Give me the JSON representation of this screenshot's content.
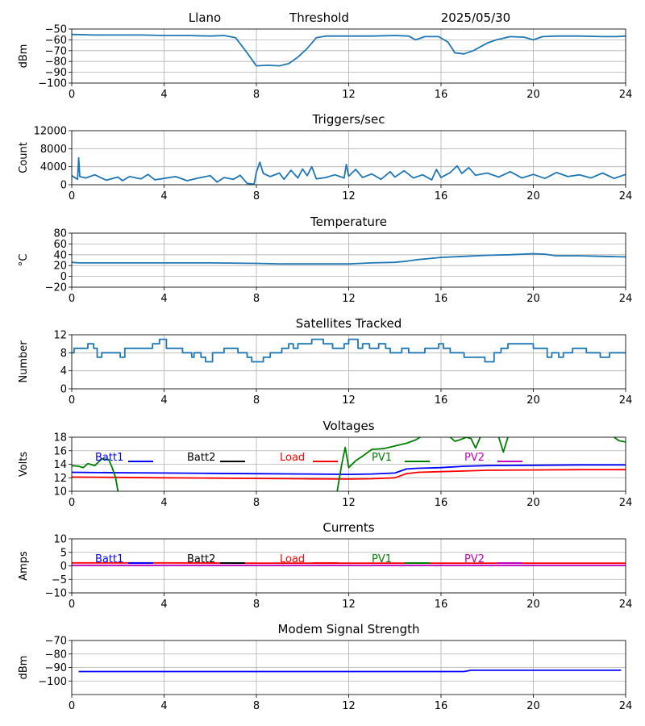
{
  "colors": {
    "series_default": "#1f77b4",
    "batt1": "#0000ff",
    "batt2": "#000000",
    "load": "#ff0000",
    "pv1": "#008000",
    "pv2": "#c000c0",
    "grid": "#b0b0b0"
  },
  "x_ticks": [
    "0",
    "4",
    "8",
    "12",
    "16",
    "20",
    "24"
  ],
  "chart_data": [
    {
      "type": "line",
      "title_parts": [
        "Llano",
        "Threshold",
        "2025/05/30"
      ],
      "xlabel": "",
      "ylabel": "dBm",
      "xlim": [
        0,
        24
      ],
      "ylim": [
        -100,
        -50
      ],
      "y_ticks": [
        "−50",
        "−60",
        "−70",
        "−80",
        "−90",
        "−100"
      ],
      "grid": true,
      "series": [
        {
          "color": "#1f77b4",
          "x": [
            0,
            1,
            2,
            3,
            4,
            5,
            6,
            6.6,
            7.1,
            7.6,
            8,
            8.5,
            9,
            9.4,
            9.8,
            10.2,
            10.6,
            11,
            12,
            13,
            14,
            14.6,
            14.9,
            15.3,
            15.6,
            15.9,
            16.3,
            16.6,
            17,
            17.4,
            18,
            18.4,
            19,
            19.6,
            20,
            20.4,
            21,
            22,
            23,
            23.6,
            24
          ],
          "y": [
            -55,
            -55.5,
            -55.5,
            -55.5,
            -56,
            -56,
            -56.5,
            -56,
            -58,
            -72,
            -84,
            -83.5,
            -84,
            -82,
            -76,
            -68,
            -58,
            -56.5,
            -56.5,
            -56.5,
            -56,
            -56.5,
            -60,
            -57,
            -57,
            -57,
            -62,
            -72,
            -73,
            -70,
            -63,
            -60,
            -57,
            -57.5,
            -60,
            -57,
            -56.5,
            -56.5,
            -57,
            -57,
            -56.5
          ]
        }
      ]
    },
    {
      "type": "line",
      "title": "Triggers/sec",
      "xlabel": "",
      "ylabel": "Count",
      "xlim": [
        0,
        24
      ],
      "ylim": [
        0,
        12000
      ],
      "y_ticks": [
        "0",
        "4000",
        "8000",
        "12000"
      ],
      "grid": true,
      "series": [
        {
          "color": "#1f77b4",
          "x": [
            0,
            0.25,
            0.3,
            0.35,
            0.6,
            1,
            1.5,
            2,
            2.2,
            2.5,
            3,
            3.3,
            3.6,
            4,
            4.5,
            5,
            5.5,
            6,
            6.3,
            6.6,
            7,
            7.3,
            7.6,
            7.9,
            8,
            8.15,
            8.3,
            8.6,
            9,
            9.2,
            9.5,
            9.8,
            10,
            10.2,
            10.4,
            10.6,
            11,
            11.4,
            11.8,
            11.9,
            12,
            12.3,
            12.6,
            13,
            13.4,
            13.8,
            14,
            14.4,
            14.8,
            15.2,
            15.6,
            15.8,
            16,
            16.4,
            16.7,
            16.9,
            17.2,
            17.5,
            18,
            18.5,
            19,
            19.5,
            20,
            20.5,
            21,
            21.5,
            22,
            22.5,
            23,
            23.5,
            24
          ],
          "y": [
            2000,
            1200,
            6000,
            1800,
            1500,
            2200,
            1000,
            1700,
            900,
            1800,
            1300,
            2300,
            1100,
            1400,
            1800,
            900,
            1500,
            2000,
            600,
            1600,
            1200,
            2100,
            300,
            100,
            2800,
            5000,
            2500,
            1800,
            2600,
            1200,
            3200,
            1500,
            3500,
            2000,
            4000,
            1300,
            1600,
            2200,
            1500,
            4500,
            1900,
            3400,
            1600,
            2400,
            1200,
            2900,
            1700,
            3100,
            1500,
            2200,
            1100,
            3400,
            1600,
            2700,
            4200,
            2500,
            3800,
            2100,
            2600,
            1700,
            2900,
            1500,
            2300,
            1400,
            2700,
            1800,
            2200,
            1500,
            2600,
            1400,
            2300
          ]
        }
      ]
    },
    {
      "type": "line",
      "title": "Temperature",
      "xlabel": "",
      "ylabel": "°C",
      "xlim": [
        0,
        24
      ],
      "ylim": [
        -20,
        80
      ],
      "y_ticks": [
        "80",
        "60",
        "40",
        "20",
        "0",
        "−20"
      ],
      "grid": true,
      "series": [
        {
          "color": "#1f77b4",
          "x": [
            0,
            0.3,
            2,
            4,
            6,
            8,
            9,
            10,
            11,
            12,
            12.5,
            13,
            14,
            14.5,
            15,
            15.5,
            16,
            17,
            18,
            19,
            20,
            20.5,
            21,
            22,
            23,
            24
          ],
          "y": [
            26,
            25,
            25,
            25,
            25,
            24,
            23,
            23,
            23,
            23,
            24,
            25,
            26,
            28,
            31,
            33,
            35,
            37,
            39,
            40,
            42,
            41,
            38,
            38,
            37,
            36
          ]
        }
      ]
    },
    {
      "type": "line",
      "title": "Satellites Tracked",
      "xlabel": "",
      "ylabel": "Number",
      "xlim": [
        0,
        24
      ],
      "ylim": [
        0,
        12
      ],
      "y_ticks": [
        "0",
        "4",
        "8",
        "12"
      ],
      "grid": true,
      "series": [
        {
          "color": "#1f77b4",
          "step": true,
          "x": [
            0,
            0.1,
            0.7,
            0.95,
            1.1,
            1.3,
            2.1,
            2.3,
            3.4,
            3.5,
            3.8,
            4.1,
            4.4,
            4.8,
            5.2,
            5.3,
            5.6,
            5.8,
            6.1,
            6.4,
            6.6,
            7.2,
            7.6,
            7.8,
            8.3,
            8.6,
            9,
            9.1,
            9.4,
            9.6,
            9.8,
            10,
            10.4,
            10.9,
            11.3,
            11.8,
            12,
            12.4,
            12.6,
            12.9,
            13.3,
            13.6,
            13.8,
            14.3,
            14.6,
            15.3,
            15.6,
            15.9,
            16.1,
            16.4,
            16.6,
            17,
            17.6,
            17.9,
            18.3,
            18.6,
            18.9,
            19.7,
            20,
            20.6,
            20.8,
            21.1,
            21.3,
            21.6,
            21.7,
            21.9,
            22.3,
            22.5,
            22.9,
            23.3,
            23.6,
            24
          ],
          "y": [
            8,
            9,
            10,
            9,
            7,
            8,
            7,
            9,
            9,
            10,
            11,
            9,
            9,
            8,
            7,
            8,
            7,
            6,
            8,
            8,
            9,
            8,
            7,
            6,
            7,
            8,
            8,
            9,
            10,
            9,
            10,
            10,
            11,
            10,
            9,
            10,
            11,
            9,
            10,
            9,
            10,
            9,
            8,
            9,
            8,
            9,
            9,
            10,
            9,
            8,
            8,
            7,
            7,
            6,
            8,
            9,
            10,
            10,
            9,
            7,
            8,
            7,
            8,
            8,
            9,
            9,
            8,
            8,
            7,
            8,
            8,
            8
          ]
        }
      ]
    },
    {
      "type": "line",
      "title": "Voltages",
      "xlabel": "",
      "ylabel": "Volts",
      "xlim": [
        0,
        24
      ],
      "ylim": [
        10,
        18
      ],
      "y_ticks": [
        "18",
        "16",
        "14",
        "12",
        "10"
      ],
      "grid": true,
      "legend": {
        "placement": "top",
        "entries": [
          "Batt1",
          "Batt2",
          "Load",
          "PV1",
          "PV2"
        ]
      },
      "series": [
        {
          "name": "Batt1",
          "color": "#0000ff",
          "x": [
            0,
            2,
            4,
            6,
            8,
            10,
            12,
            13,
            14,
            14.5,
            15,
            16,
            17,
            18,
            20,
            22,
            24
          ],
          "y": [
            12.8,
            12.75,
            12.7,
            12.65,
            12.6,
            12.55,
            12.5,
            12.55,
            12.7,
            13.3,
            13.4,
            13.5,
            13.7,
            13.8,
            13.85,
            13.9,
            13.9
          ]
        },
        {
          "name": "Load",
          "color": "#ff0000",
          "x": [
            0,
            2,
            4,
            6,
            8,
            10,
            12,
            13,
            14,
            14.5,
            15,
            16,
            17,
            18,
            20,
            22,
            24
          ],
          "y": [
            12.1,
            12.05,
            12.0,
            11.95,
            11.9,
            11.85,
            11.8,
            11.85,
            12.0,
            12.6,
            12.8,
            12.9,
            13.0,
            13.1,
            13.15,
            13.2,
            13.2
          ]
        },
        {
          "name": "PV1",
          "color": "#008000",
          "x": [
            0,
            0.3,
            0.5,
            0.7,
            1,
            1.3,
            1.6,
            1.75,
            1.9,
            2.0,
            null,
            11.5,
            11.7,
            11.85,
            12.0,
            12.3,
            12.6,
            13,
            13.5,
            14,
            14.5,
            14.9,
            15.1,
            null,
            16.4,
            16.6,
            16.8,
            17.1,
            17.3,
            17.5,
            17.7,
            null,
            18.5,
            18.7,
            18.9,
            null,
            23.5,
            23.7,
            24
          ],
          "y": [
            13.8,
            13.7,
            13.5,
            14.1,
            13.8,
            14.8,
            14.7,
            13.5,
            12,
            10,
            null,
            10,
            14,
            16.5,
            13.5,
            14.5,
            15.2,
            16.2,
            16.3,
            16.7,
            17.1,
            17.6,
            18,
            null,
            18,
            17.4,
            17.6,
            18,
            17.8,
            16.4,
            18,
            null,
            18,
            15.8,
            18,
            null,
            18,
            17.5,
            17.3
          ]
        },
        {
          "name": "Batt2",
          "color": "#000000",
          "x": [],
          "y": []
        },
        {
          "name": "PV2",
          "color": "#c000c0",
          "x": [],
          "y": []
        }
      ]
    },
    {
      "type": "line",
      "title": "Currents",
      "xlabel": "",
      "ylabel": "Amps",
      "xlim": [
        0,
        24
      ],
      "ylim": [
        -10,
        10
      ],
      "y_ticks": [
        "10",
        "5",
        "0",
        "−5",
        "−10"
      ],
      "grid": true,
      "legend": {
        "placement": "top",
        "entries": [
          "Batt1",
          "Batt2",
          "Load",
          "PV1",
          "PV2"
        ]
      },
      "series": [
        {
          "name": "Load",
          "color": "#ff0000",
          "x": [
            0,
            4,
            8,
            12,
            16,
            20,
            24
          ],
          "y": [
            1.1,
            1.1,
            1.0,
            1.0,
            1.0,
            1.0,
            1.0
          ]
        },
        {
          "name": "PV2",
          "color": "#c000c0",
          "x": [
            0,
            24
          ],
          "y": [
            0.2,
            0.2
          ]
        },
        {
          "name": "Batt1",
          "color": "#0000ff",
          "x": [],
          "y": []
        },
        {
          "name": "Batt2",
          "color": "#000000",
          "x": [],
          "y": []
        },
        {
          "name": "PV1",
          "color": "#008000",
          "x": [],
          "y": []
        }
      ]
    },
    {
      "type": "line",
      "title": "Modem Signal Strength",
      "xlabel": "",
      "ylabel": "dBm",
      "xlim": [
        0,
        24
      ],
      "ylim": [
        -110,
        -70
      ],
      "y_ticks": [
        "−70",
        "−80",
        "−90",
        "−100"
      ],
      "grid": true,
      "series": [
        {
          "color": "#0000ff",
          "x": [
            0.3,
            2,
            4,
            6,
            8,
            10,
            12,
            14,
            16,
            17,
            17.3,
            18,
            20,
            22,
            23.8
          ],
          "y": [
            -93,
            -93,
            -93,
            -93,
            -93,
            -93,
            -93,
            -93,
            -93,
            -93,
            -92,
            -92,
            -92,
            -92,
            -92
          ]
        }
      ]
    }
  ]
}
